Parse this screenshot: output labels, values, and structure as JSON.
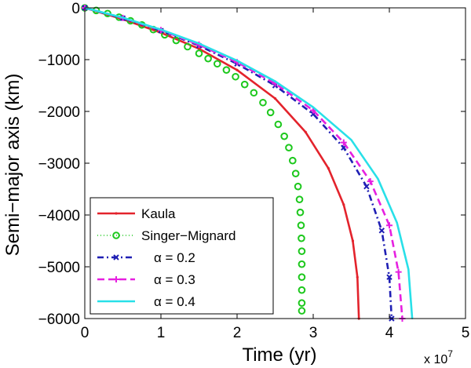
{
  "chart_data": {
    "type": "line",
    "title": "",
    "xlabel": "Time (yr)",
    "ylabel": "Semi−major axis (km)",
    "x_multiplier_label": "x 10",
    "x_multiplier_exp": "7",
    "xlim": [
      0,
      5
    ],
    "ylim": [
      -6000,
      0
    ],
    "xticks": [
      "0",
      "1",
      "2",
      "3",
      "4",
      "5"
    ],
    "yticks": [
      "0",
      "−1000",
      "−2000",
      "−3000",
      "−4000",
      "−5000",
      "−6000"
    ],
    "grid": false,
    "legend_position": "bottom-left",
    "series": [
      {
        "name": "Kaula",
        "color": "#e3232c",
        "style": "solid-dot",
        "x": [
          0,
          0.5,
          1,
          1.5,
          2,
          2.5,
          2.9,
          3.2,
          3.4,
          3.52,
          3.58,
          3.6
        ],
        "y": [
          0,
          -220,
          -480,
          -790,
          -1200,
          -1750,
          -2400,
          -3100,
          -3800,
          -4500,
          -5200,
          -6000
        ]
      },
      {
        "name": "Singer−Mignard",
        "color": "#1dc81d",
        "style": "circle",
        "x": [
          0,
          0.15,
          0.3,
          0.45,
          0.6,
          0.75,
          0.9,
          1.05,
          1.2,
          1.35,
          1.5,
          1.62,
          1.74,
          1.86,
          1.98,
          2.1,
          2.22,
          2.34,
          2.44,
          2.54,
          2.62,
          2.68,
          2.73,
          2.77,
          2.8,
          2.82,
          2.83,
          2.84,
          2.845,
          2.85,
          2.85,
          2.85,
          2.85,
          2.85,
          2.85
        ],
        "y": [
          0,
          -50,
          -110,
          -180,
          -250,
          -330,
          -420,
          -520,
          -630,
          -750,
          -880,
          -980,
          -1080,
          -1200,
          -1330,
          -1480,
          -1640,
          -1830,
          -2020,
          -2250,
          -2480,
          -2700,
          -2950,
          -3200,
          -3450,
          -3700,
          -3950,
          -4200,
          -4450,
          -4700,
          -4950,
          -5200,
          -5450,
          -5700,
          -5850
        ]
      },
      {
        "name": "α  = 0.2",
        "color": "#1f1fb4",
        "style": "dash-dot-x",
        "x": [
          0,
          0.5,
          1,
          1.5,
          2,
          2.5,
          3,
          3.4,
          3.7,
          3.9,
          4.0,
          4.03
        ],
        "y": [
          0,
          -200,
          -440,
          -730,
          -1080,
          -1500,
          -2050,
          -2700,
          -3450,
          -4300,
          -5200,
          -6000
        ]
      },
      {
        "name": "α  = 0.3",
        "color": "#e620e0",
        "style": "dash-plus",
        "x": [
          0,
          0.5,
          1,
          1.5,
          2,
          2.5,
          3,
          3.4,
          3.75,
          4.0,
          4.12,
          4.17
        ],
        "y": [
          0,
          -195,
          -430,
          -710,
          -1050,
          -1460,
          -1980,
          -2600,
          -3350,
          -4200,
          -5100,
          -6000
        ]
      },
      {
        "name": "α  = 0.4",
        "color": "#28e0e8",
        "style": "solid",
        "x": [
          0,
          0.5,
          1,
          1.5,
          2,
          2.5,
          3,
          3.5,
          3.85,
          4.1,
          4.25,
          4.3
        ],
        "y": [
          0,
          -190,
          -420,
          -690,
          -1020,
          -1420,
          -1920,
          -2550,
          -3300,
          -4150,
          -5050,
          -6000
        ]
      }
    ]
  }
}
